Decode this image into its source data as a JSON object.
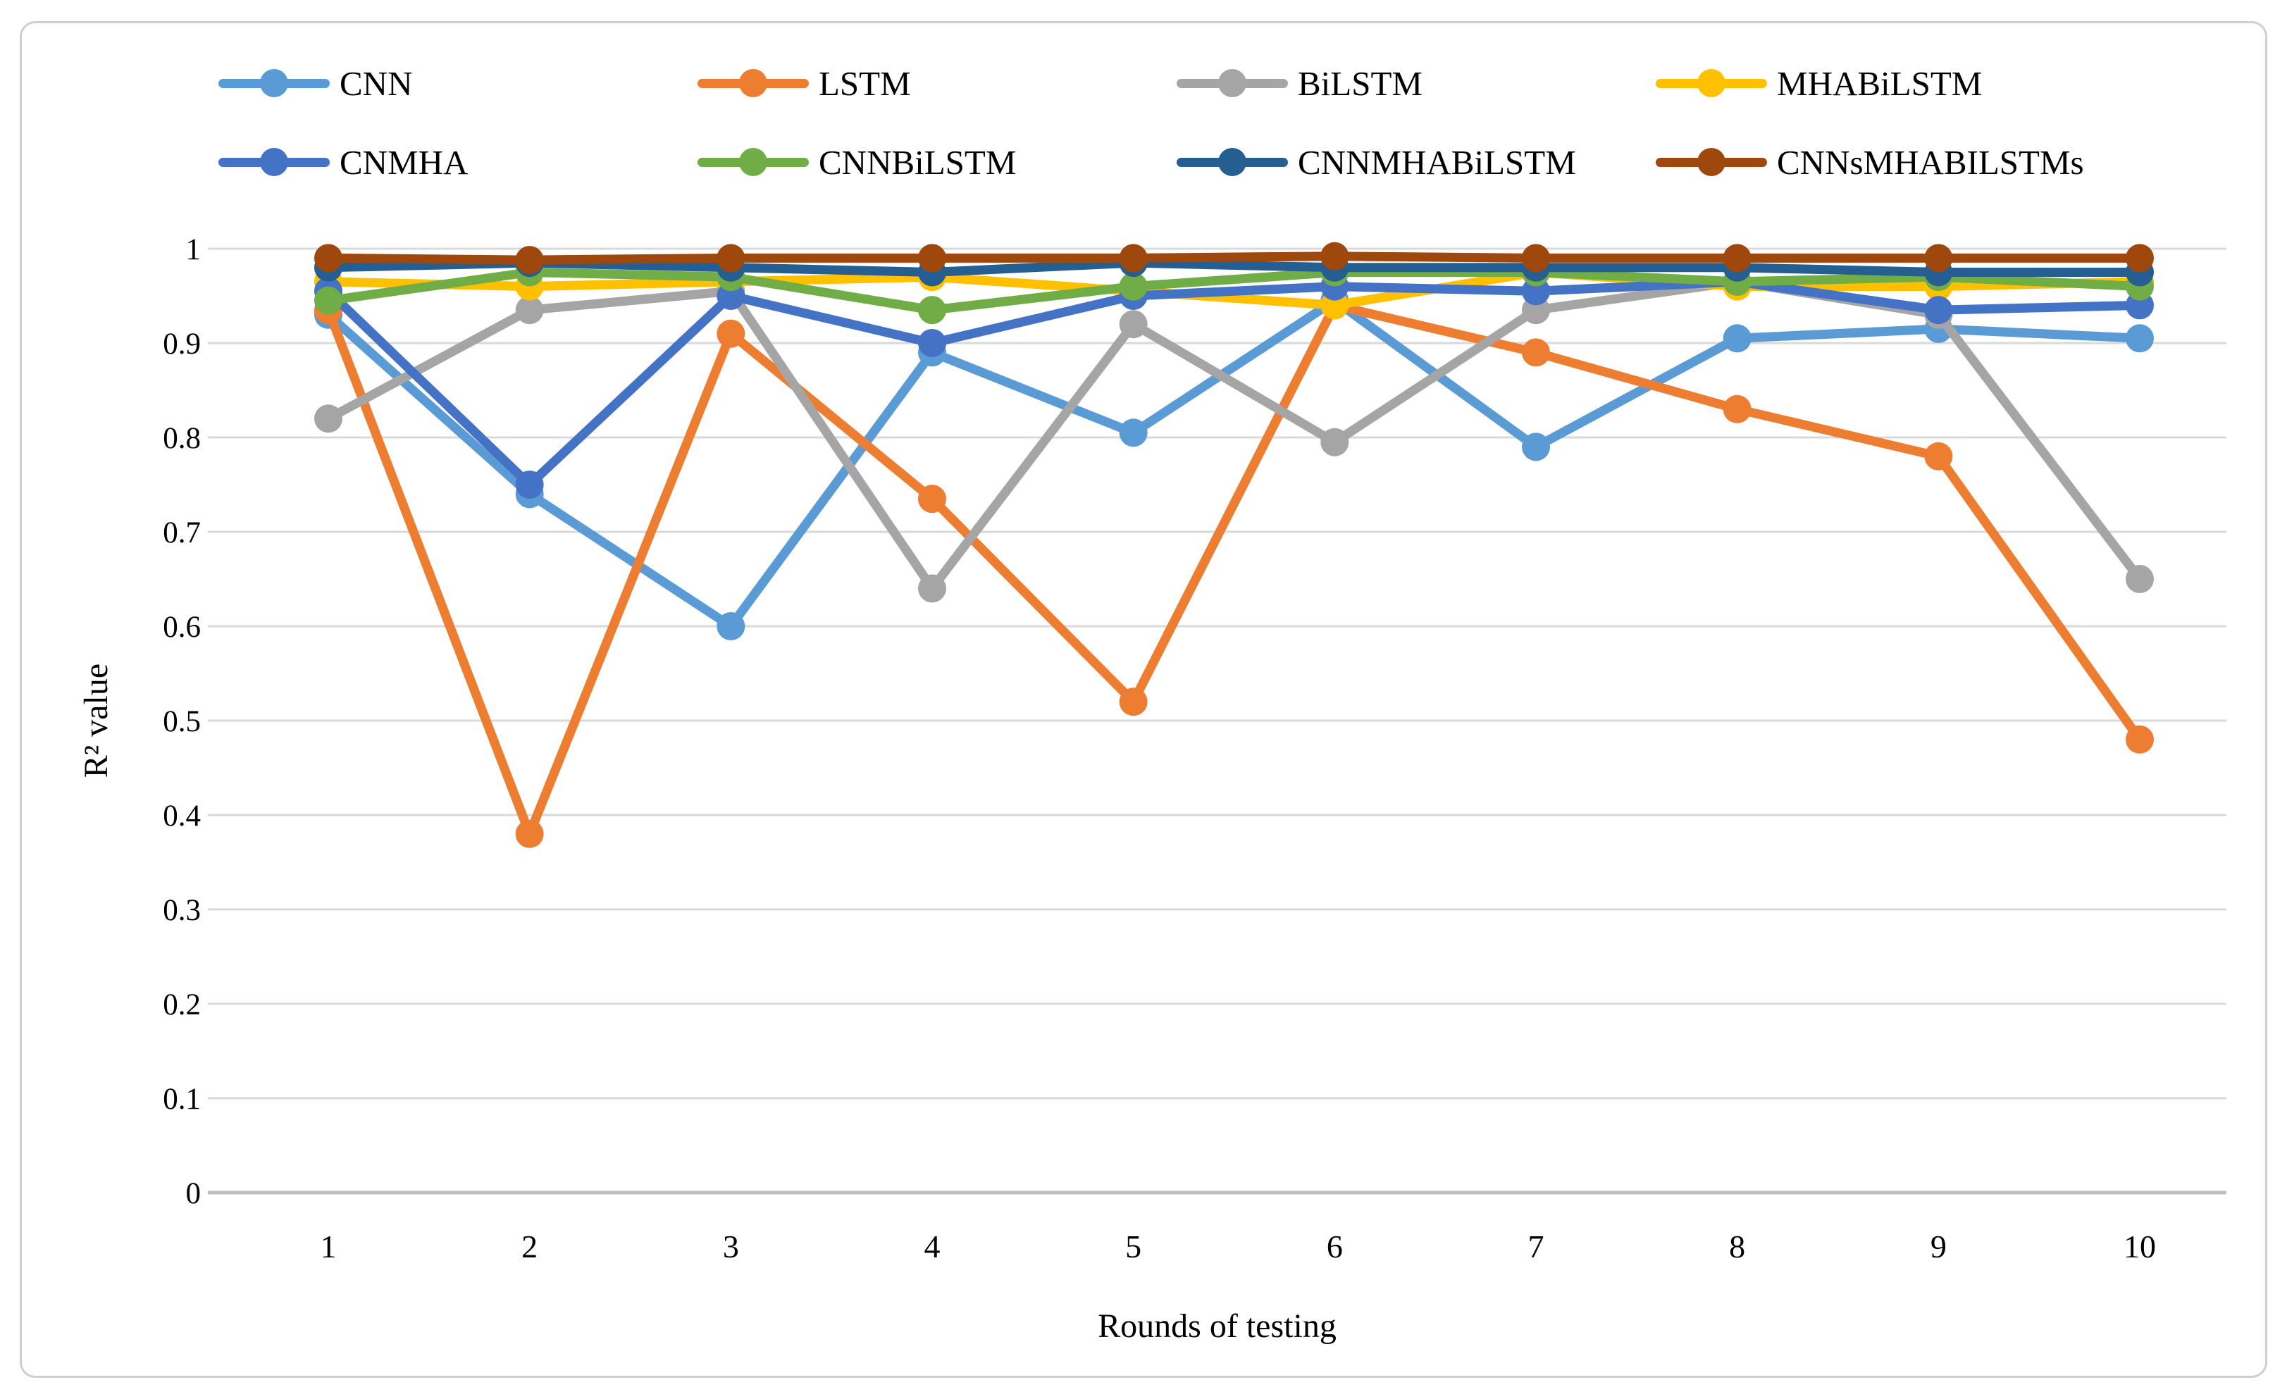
{
  "chart_data": {
    "type": "line",
    "title": "",
    "xlabel": "Rounds of testing",
    "ylabel": "R² value",
    "x": [
      1,
      2,
      3,
      4,
      5,
      6,
      7,
      8,
      9,
      10
    ],
    "ylim": [
      0,
      1
    ],
    "ytick_labels": [
      "0",
      "0.1",
      "0.2",
      "0.3",
      "0.4",
      "0.5",
      "0.6",
      "0.7",
      "0.8",
      "0.9",
      "1"
    ],
    "grid": "horizontal",
    "legend_position": "top",
    "colors": {
      "gridline": "#d9d9d9",
      "axis_line": "#bfbfbf",
      "frame_border": "#cfcfcf",
      "background": "#ffffff"
    },
    "series": [
      {
        "name": "CNN",
        "color": "#5B9BD5",
        "values": [
          0.93,
          0.74,
          0.6,
          0.89,
          0.805,
          0.945,
          0.79,
          0.905,
          0.915,
          0.905
        ]
      },
      {
        "name": "LSTM",
        "color": "#ED7D31",
        "values": [
          0.935,
          0.38,
          0.91,
          0.735,
          0.52,
          0.94,
          0.89,
          0.83,
          0.78,
          0.48
        ]
      },
      {
        "name": "BiLSTM",
        "color": "#A5A5A5",
        "values": [
          0.82,
          0.935,
          0.955,
          0.64,
          0.92,
          0.795,
          0.935,
          0.965,
          0.93,
          0.65
        ]
      },
      {
        "name": "MHABiLSTM",
        "color": "#FFC000",
        "values": [
          0.965,
          0.96,
          0.965,
          0.97,
          0.955,
          0.94,
          0.975,
          0.96,
          0.96,
          0.965
        ]
      },
      {
        "name": "CNMHA",
        "color": "#4472C4",
        "values": [
          0.955,
          0.75,
          0.95,
          0.9,
          0.95,
          0.96,
          0.955,
          0.965,
          0.935,
          0.94
        ]
      },
      {
        "name": "CNNBiLSTM",
        "color": "#70AD47",
        "values": [
          0.945,
          0.975,
          0.97,
          0.935,
          0.96,
          0.975,
          0.975,
          0.965,
          0.97,
          0.96
        ]
      },
      {
        "name": "CNNMHABiLSTM",
        "color": "#255E91",
        "values": [
          0.98,
          0.985,
          0.98,
          0.975,
          0.985,
          0.98,
          0.98,
          0.98,
          0.975,
          0.975
        ]
      },
      {
        "name": "CNNsMHABILSTMs",
        "color": "#9E480E",
        "values": [
          0.99,
          0.988,
          0.99,
          0.99,
          0.99,
          0.992,
          0.99,
          0.99,
          0.99,
          0.99
        ]
      }
    ]
  }
}
